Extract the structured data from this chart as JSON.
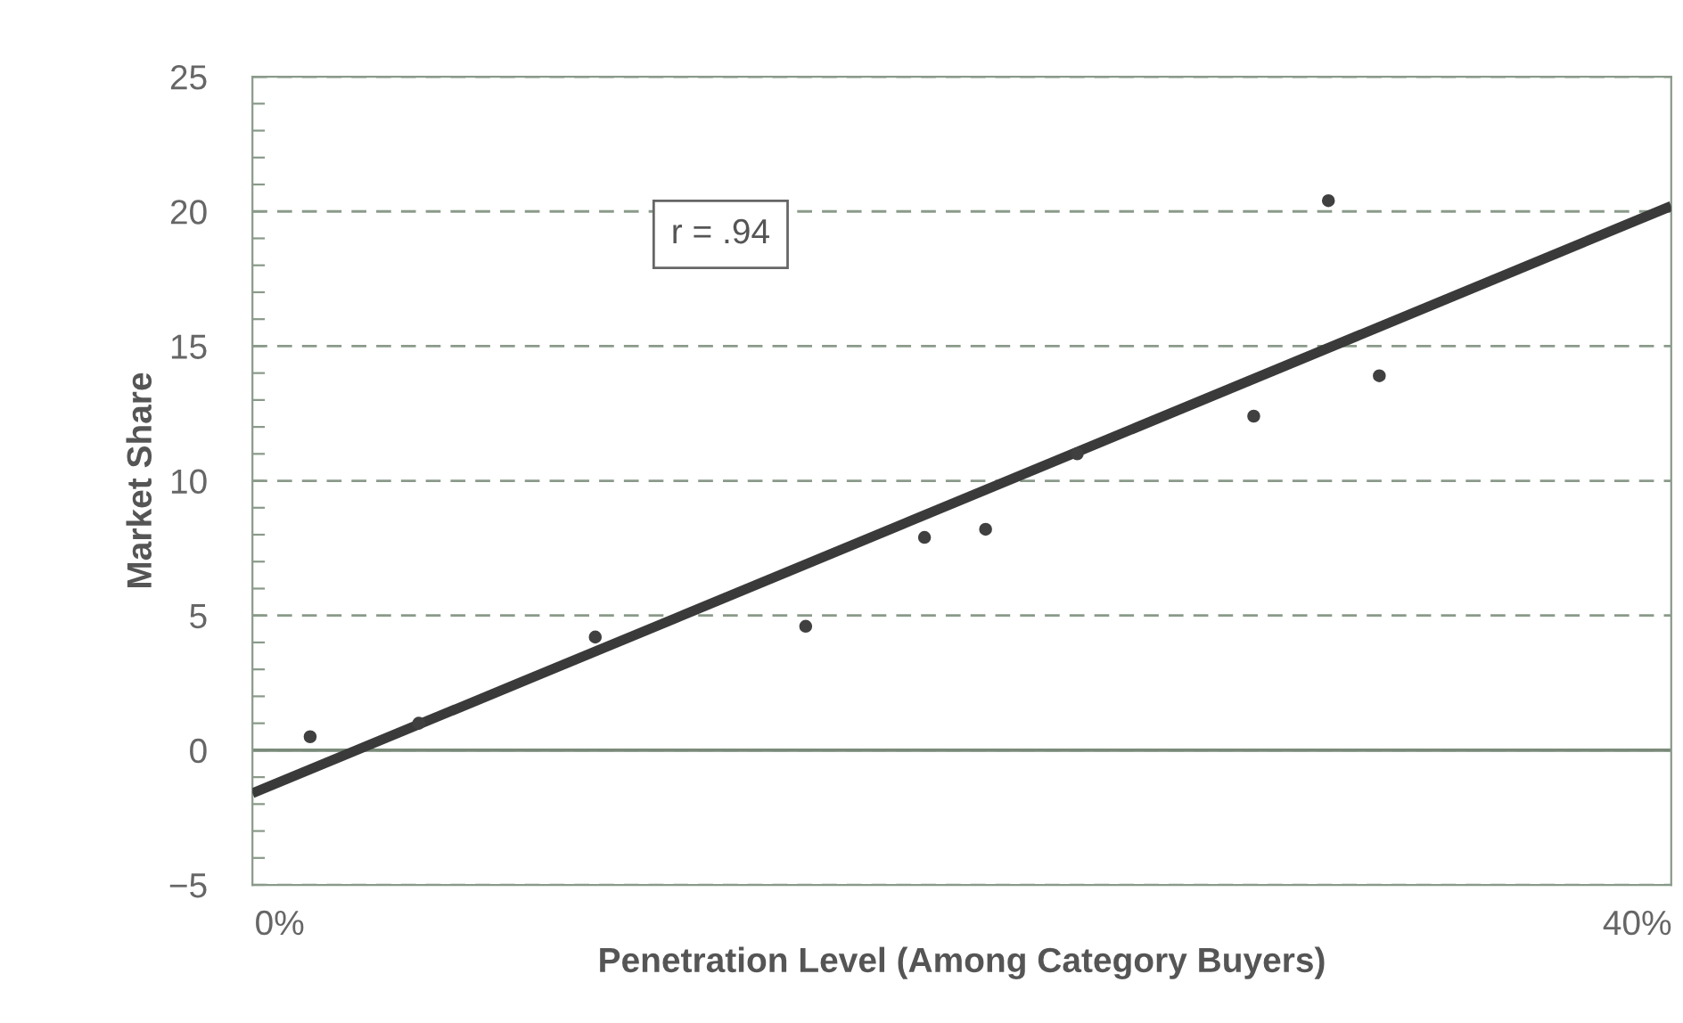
{
  "chart_data": {
    "type": "scatter",
    "xlabel": "Penetration Level (Among Category Buyers)",
    "ylabel": "Market Share",
    "xlim": [
      -0.8,
      41
    ],
    "xticks": [
      {
        "value": 0,
        "label": "0%"
      },
      {
        "value": 40,
        "label": "40%"
      }
    ],
    "ylim": [
      -5,
      25
    ],
    "yticks": [
      -5,
      {
        "value": -4,
        "label": null
      },
      {
        "value": -3,
        "label": null
      },
      {
        "value": -2,
        "label": null
      },
      {
        "value": -1,
        "label": null
      },
      0,
      {
        "value": 1,
        "label": null
      },
      {
        "value": 2,
        "label": null
      },
      {
        "value": 3,
        "label": null
      },
      {
        "value": 4,
        "label": null
      },
      5,
      {
        "value": 6,
        "label": null
      },
      {
        "value": 7,
        "label": null
      },
      {
        "value": 8,
        "label": null
      },
      {
        "value": 9,
        "label": null
      },
      10,
      {
        "value": 11,
        "label": null
      },
      {
        "value": 12,
        "label": null
      },
      {
        "value": 13,
        "label": null
      },
      {
        "value": 14,
        "label": null
      },
      15,
      {
        "value": 16,
        "label": null
      },
      {
        "value": 17,
        "label": null
      },
      {
        "value": 18,
        "label": null
      },
      {
        "value": 19,
        "label": null
      },
      20,
      {
        "value": 21,
        "label": null
      },
      {
        "value": 22,
        "label": null
      },
      {
        "value": 23,
        "label": null
      },
      {
        "value": 24,
        "label": null
      },
      25
    ],
    "grid": "y",
    "series": [
      {
        "color": "#404040",
        "marker": "circle",
        "x": [
          0.9,
          4.1,
          9.3,
          15.5,
          19.0,
          20.8,
          23.5,
          28.7,
          30.9,
          32.4
        ],
        "values": [
          0.5,
          1.0,
          4.2,
          4.6,
          7.9,
          8.2,
          11.0,
          12.4,
          20.4,
          13.9
        ]
      },
      {
        "type": "line",
        "color": "#3a3a3a",
        "x": [
          -0.8,
          41
        ],
        "values": [
          -1.6,
          20.2
        ]
      }
    ],
    "ref_lines": [
      {
        "axis": "y",
        "value": 0,
        "color": "#7a8a7a",
        "line_style": "solid"
      }
    ],
    "annotations": [
      "r = .94"
    ]
  }
}
